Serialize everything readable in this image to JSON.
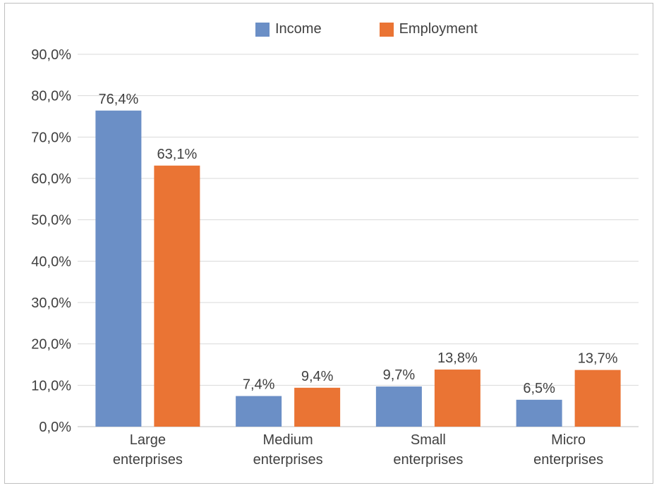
{
  "chart_data": {
    "type": "bar",
    "categories": [
      [
        "Large",
        "enterprises"
      ],
      [
        "Medium",
        "enterprises"
      ],
      [
        "Small",
        "enterprises"
      ],
      [
        "Micro",
        "enterprises"
      ]
    ],
    "series": [
      {
        "name": "Income",
        "color": "#6b8fc6",
        "values": [
          76.4,
          7.4,
          9.7,
          6.5
        ],
        "labels": [
          "76,4%",
          "7,4%",
          "9,7%",
          "6,5%"
        ]
      },
      {
        "name": "Employment",
        "color": "#ea7434",
        "values": [
          63.1,
          9.4,
          13.8,
          13.7
        ],
        "labels": [
          "63,1%",
          "9,4%",
          "13,8%",
          "13,7%"
        ]
      }
    ],
    "ylim": [
      0,
      90
    ],
    "yticks": [
      "0,0%",
      "10,0%",
      "20,0%",
      "30,0%",
      "40,0%",
      "50,0%",
      "60,0%",
      "70,0%",
      "80,0%",
      "90,0%"
    ],
    "grid": true,
    "legend_position": "top"
  }
}
